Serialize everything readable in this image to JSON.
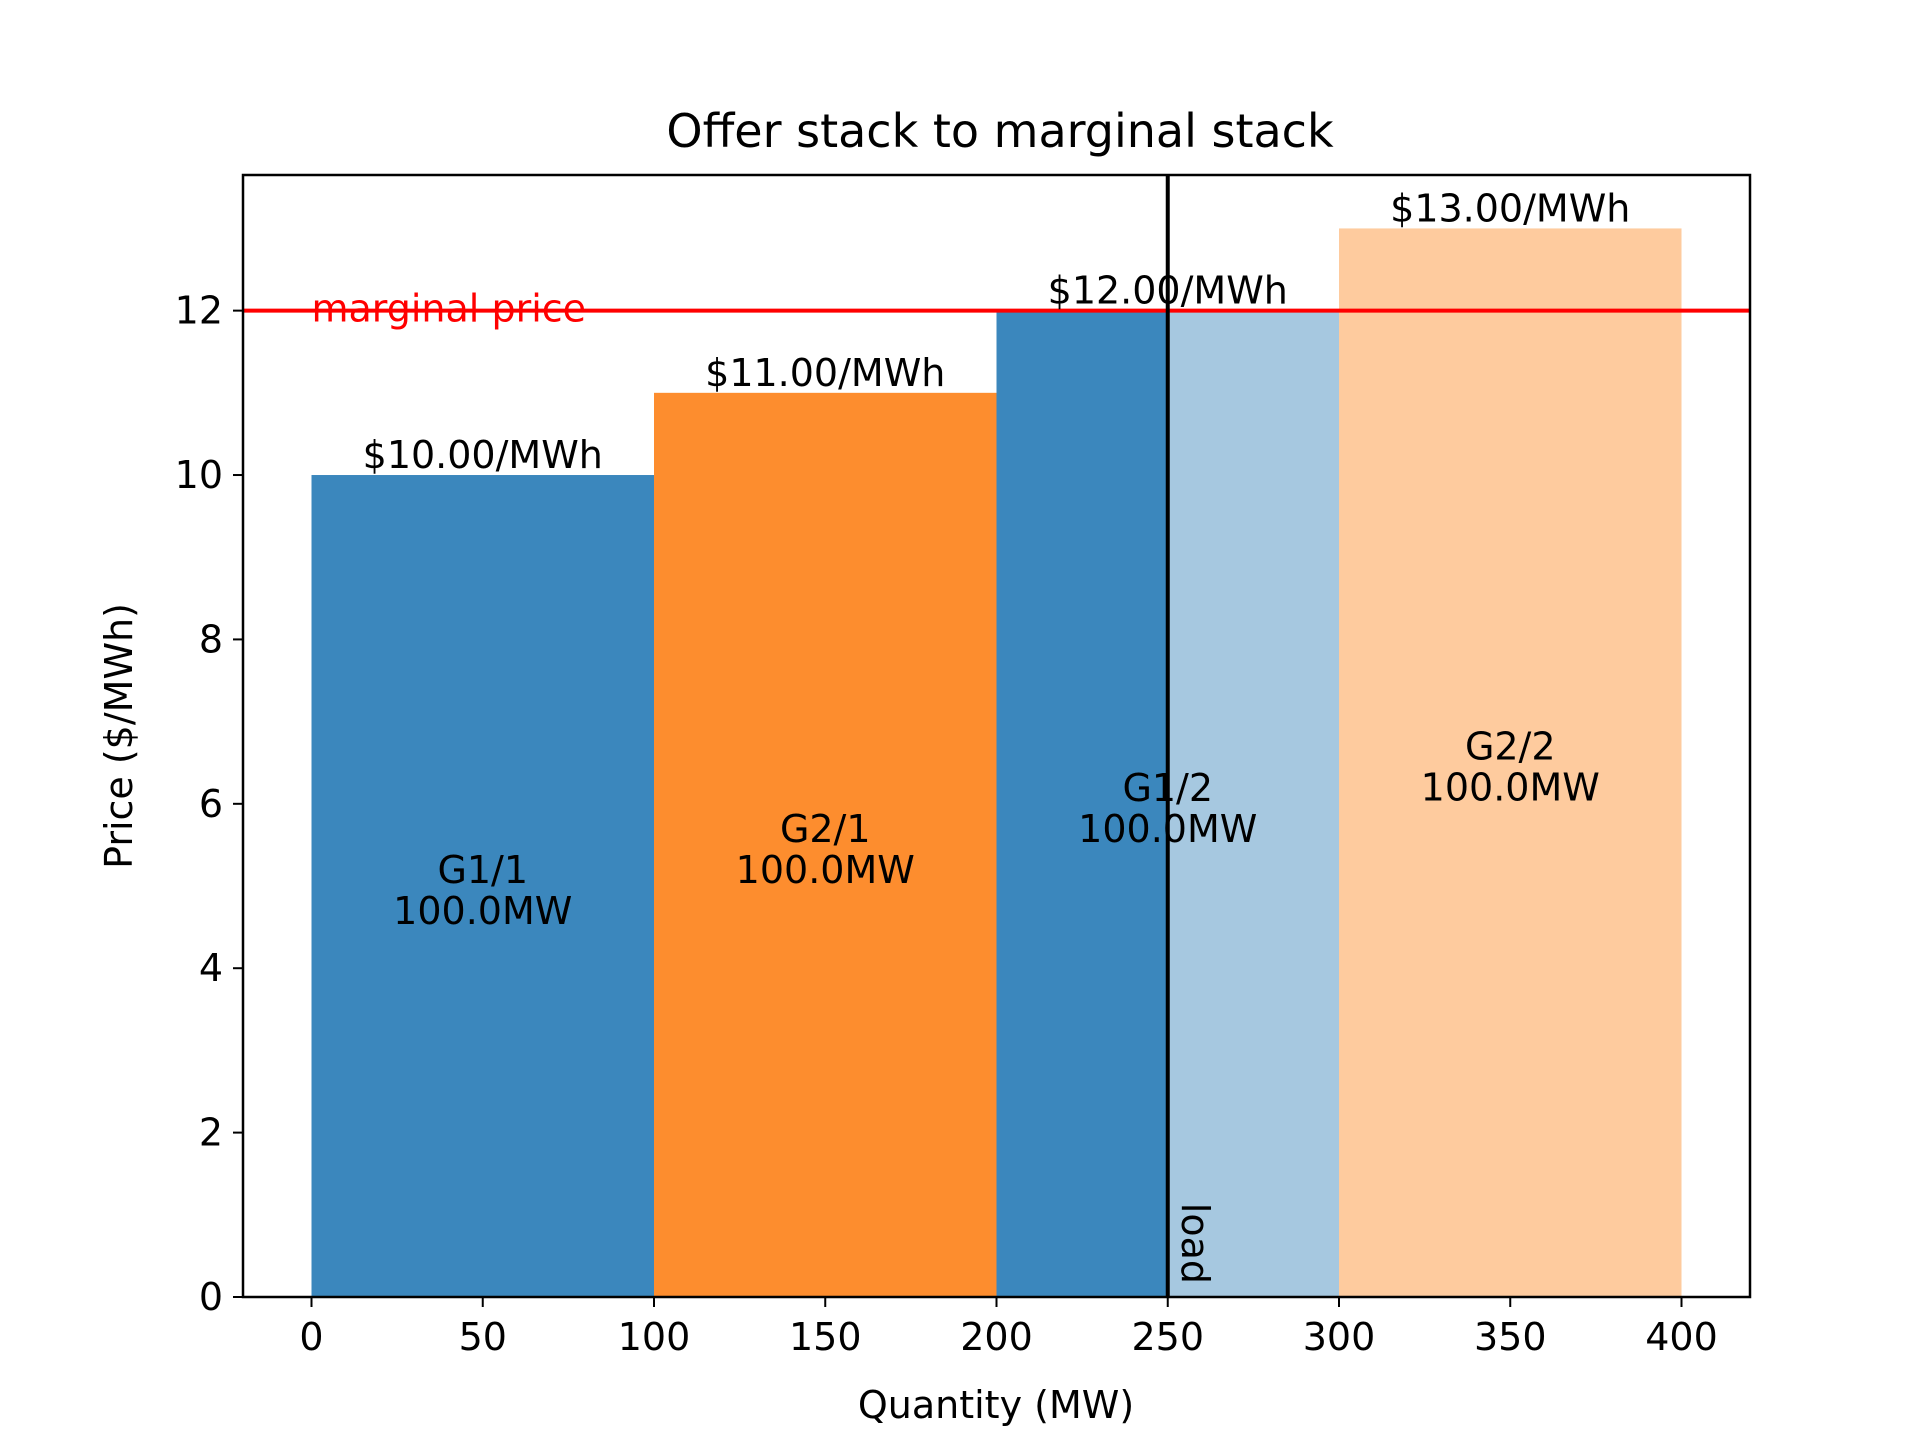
{
  "chart_data": {
    "type": "bar",
    "title": "Offer stack to marginal stack",
    "xlabel": "Quantity (MW)",
    "ylabel": "Price ($/MWh)",
    "xlim": [
      -20,
      420
    ],
    "ylim": [
      0,
      13.65
    ],
    "xticks": [
      0,
      50,
      100,
      150,
      200,
      250,
      300,
      350,
      400
    ],
    "xtick_labels": [
      "0",
      "50",
      "100",
      "150",
      "200",
      "250",
      "300",
      "350",
      "400"
    ],
    "yticks": [
      0,
      2,
      4,
      6,
      8,
      10,
      12
    ],
    "ytick_labels": [
      "0",
      "2",
      "4",
      "6",
      "8",
      "10",
      "12"
    ],
    "grid": false,
    "offers": [
      {
        "name": "G1/1",
        "start": 0,
        "end": 100,
        "price": 10,
        "price_label": "$10.00/MWh",
        "qty_label": "100.0MW",
        "color": "#3b87bd"
      },
      {
        "name": "G2/1",
        "start": 100,
        "end": 200,
        "price": 11,
        "price_label": "$11.00/MWh",
        "qty_label": "100.0MW",
        "color": "#fd8d2e"
      },
      {
        "name": "G1/2",
        "start": 200,
        "end": 300,
        "price": 12,
        "price_label": "$12.00/MWh",
        "qty_label": "100.0MW",
        "color": "#3b87bd",
        "split_at": 250,
        "color_after_split": "#a6c8e0"
      },
      {
        "name": "G2/2",
        "start": 300,
        "end": 400,
        "price": 13,
        "price_label": "$13.00/MWh",
        "qty_label": "100.0MW",
        "color": "#fecb9e"
      }
    ],
    "marginal_price": {
      "value": 12,
      "label": "marginal price",
      "color": "#ff0000"
    },
    "load": {
      "value": 250,
      "label": "load",
      "color": "#000000"
    }
  }
}
